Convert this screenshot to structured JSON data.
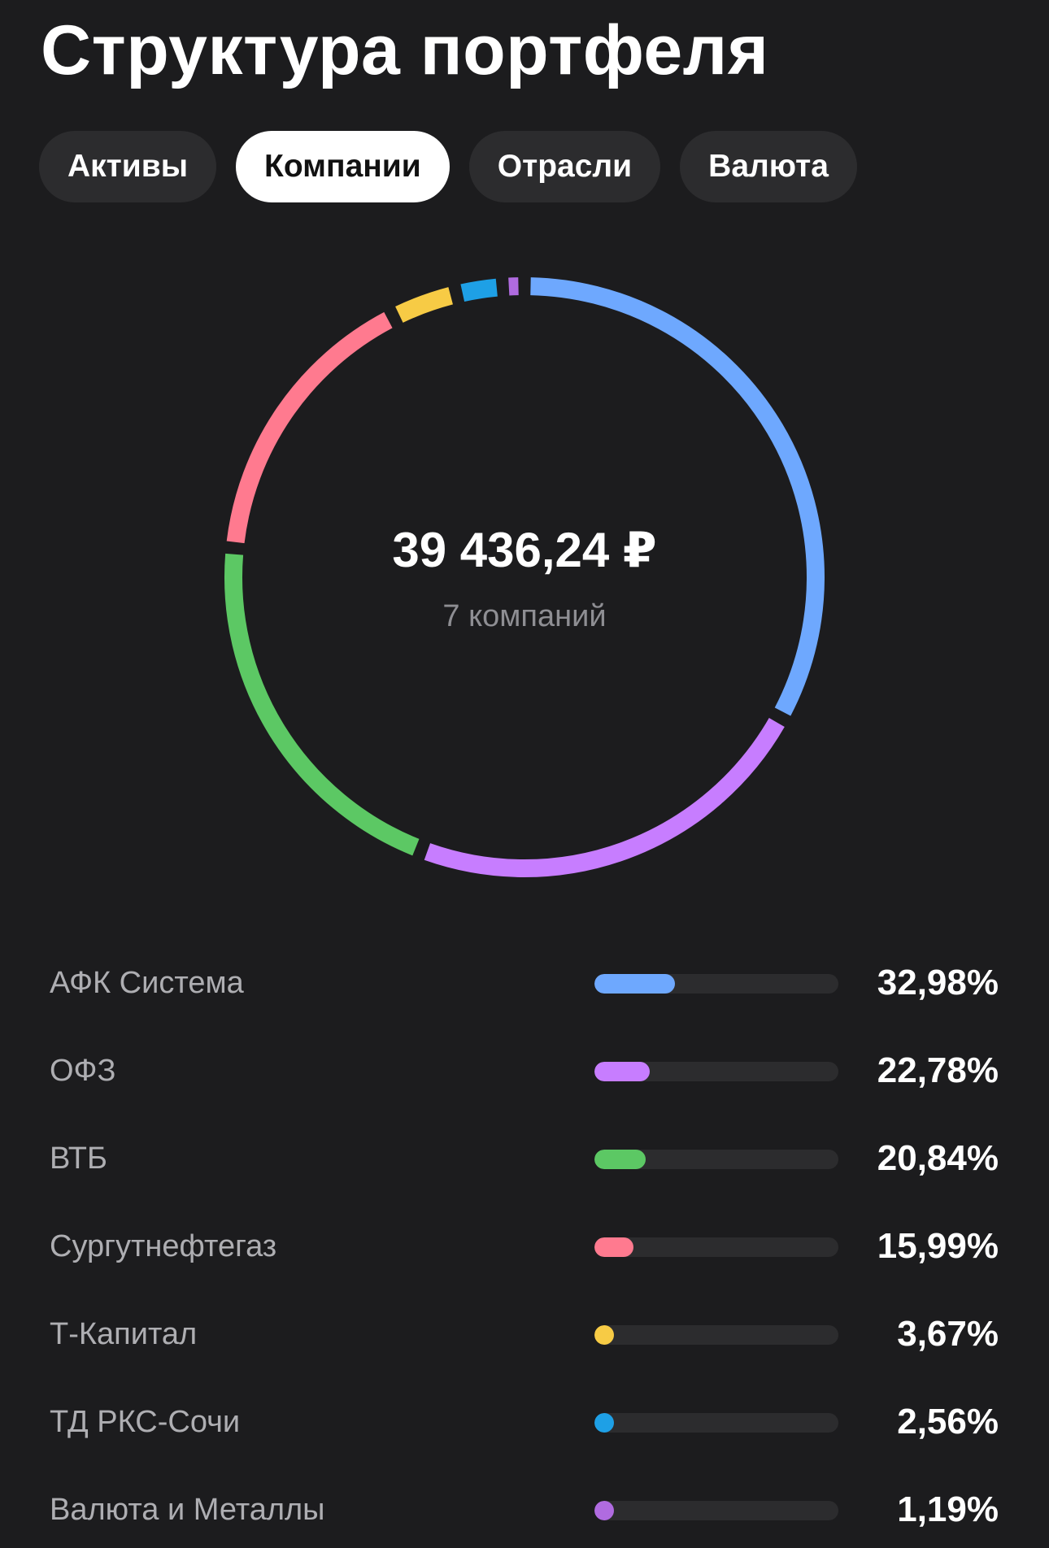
{
  "header": {
    "title": "Структура портфеля"
  },
  "tabs": [
    {
      "label": "Активы",
      "active": false
    },
    {
      "label": "Компании",
      "active": true
    },
    {
      "label": "Отрасли",
      "active": false
    },
    {
      "label": "Валюта",
      "active": false
    }
  ],
  "summary": {
    "total": "39 436,24 ₽",
    "subtitle": "7 компаний"
  },
  "chart_data": {
    "type": "pie",
    "categories": [
      "АФК Система",
      "ОФЗ",
      "ВТБ",
      "Сургутнефтегаз",
      "Т-Капитал",
      "ТД РКС-Сочи",
      "Валюта и Металлы"
    ],
    "values": [
      32.98,
      22.78,
      20.84,
      15.99,
      3.67,
      2.56,
      1.19
    ],
    "colors": [
      "#6ea8fe",
      "#c77dff",
      "#5cc864",
      "#ff7a8f",
      "#f7cb45",
      "#1ea0e6",
      "#b06be0"
    ],
    "style": "donut"
  },
  "companies": [
    {
      "name": "АФК Система",
      "percent": "32,98%",
      "share": 0.3298,
      "color": "#6ea8fe"
    },
    {
      "name": "ОФЗ",
      "percent": "22,78%",
      "share": 0.2278,
      "color": "#c77dff"
    },
    {
      "name": "ВТБ",
      "percent": "20,84%",
      "share": 0.2084,
      "color": "#5cc864"
    },
    {
      "name": "Сургутнефтегаз",
      "percent": "15,99%",
      "share": 0.1599,
      "color": "#ff7a8f"
    },
    {
      "name": "Т-Капитал",
      "percent": "3,67%",
      "share": 0.0367,
      "color": "#f7cb45"
    },
    {
      "name": "ТД РКС-Сочи",
      "percent": "2,56%",
      "share": 0.0256,
      "color": "#1ea0e6"
    },
    {
      "name": "Валюта и Металлы",
      "percent": "1,19%",
      "share": 0.0119,
      "color": "#b06be0"
    }
  ]
}
